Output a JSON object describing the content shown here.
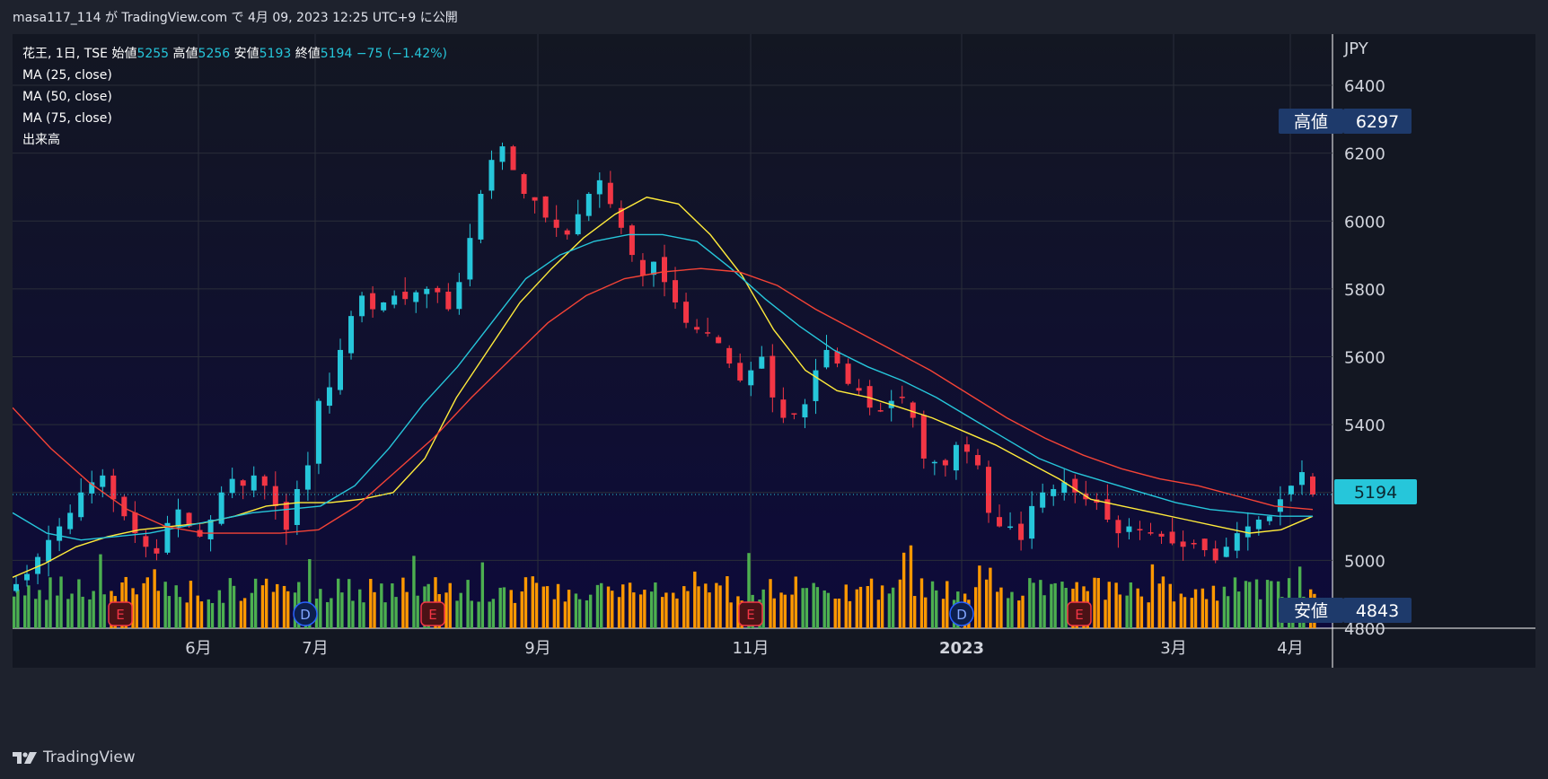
{
  "header": {
    "publish_line": "masa117_114 が TradingView.com で 4月 09, 2023 12:25 UTC+9 に公開"
  },
  "legend": {
    "symbol": "花王, 1日, TSE",
    "open_label": "始値",
    "open": "5255",
    "high_label": "高値",
    "high": "5256",
    "low_label": "安値",
    "low": "5193",
    "close_label": "終値",
    "close": "5194",
    "change": "−75 (−1.42%)",
    "ma1": "MA (25, close)",
    "ma2": "MA (50, close)",
    "ma3": "MA (75, close)",
    "volume": "出来高"
  },
  "price_axis": {
    "currency": "JPY",
    "high_tag_label": "高値",
    "high_tag_value": "6297",
    "low_tag_label": "安値",
    "low_tag_value": "4843",
    "last_price": "5194"
  },
  "footer": {
    "brand": "TradingView"
  },
  "colors": {
    "up": "#26c6da",
    "down": "#f23645",
    "ma25": "#ffeb3b",
    "ma50": "#26c6da",
    "ma75": "#f44336",
    "vol_up": "#4caf50",
    "vol_down": "#ff9800",
    "bg_top": "#131722",
    "bg_bottom": "#0d0a3a"
  },
  "chart_data": {
    "type": "candlestick",
    "title": "花王, 1日, TSE",
    "ylabel": "JPY",
    "ylim": [
      4800,
      6500
    ],
    "y_ticks": [
      4800,
      5000,
      5200,
      5400,
      5600,
      5800,
      6000,
      6200,
      6400
    ],
    "x_tick_labels": [
      "6月",
      "7月",
      "9月",
      "11月",
      "2023",
      "3月",
      "4月"
    ],
    "date_range": [
      "2022-05",
      "2023-04-07"
    ],
    "events": [
      {
        "type": "E",
        "label": "E",
        "month": "2022-05"
      },
      {
        "type": "D",
        "label": "D",
        "month": "2022-06"
      },
      {
        "type": "E",
        "label": "E",
        "month": "2022-08"
      },
      {
        "type": "E",
        "label": "E",
        "month": "2022-10"
      },
      {
        "type": "D",
        "label": "D",
        "month": "2022-12"
      },
      {
        "type": "E",
        "label": "E",
        "month": "2023-02"
      }
    ],
    "series": [
      {
        "name": "花王",
        "style": "candles",
        "close_path": [
          4930,
          4960,
          5010,
          5060,
          5100,
          5140,
          5200,
          5230,
          5250,
          5180,
          5130,
          5080,
          5040,
          5020,
          5110,
          5150,
          5100,
          5070,
          5120,
          5200,
          5240,
          5220,
          5250,
          5220,
          5160,
          5090,
          5210,
          5280,
          5470,
          5510,
          5620,
          5720,
          5780,
          5740,
          5760,
          5780,
          5770,
          5790,
          5800,
          5790,
          5740,
          5820,
          5950,
          6080,
          6180,
          6220,
          6150,
          6080,
          6060,
          6010,
          5980,
          5960,
          6020,
          6080,
          6120,
          6050,
          5980,
          5900,
          5840,
          5880,
          5820,
          5760,
          5700,
          5680,
          5670,
          5640,
          5580,
          5530,
          5560,
          5600,
          5480,
          5420,
          5430,
          5460,
          5560,
          5620,
          5580,
          5520,
          5500,
          5450,
          5440,
          5470,
          5480,
          5420,
          5300,
          5290,
          5280,
          5340,
          5320,
          5280,
          5140,
          5100,
          5100,
          5060,
          5160,
          5200,
          5210,
          5230,
          5200,
          5180,
          5170,
          5120,
          5080,
          5100,
          5090,
          5080,
          5070,
          5050,
          5040,
          5050,
          5030,
          5000,
          5040,
          5080,
          5100,
          5120,
          5130,
          5180,
          5220,
          5260,
          5194
        ]
      },
      {
        "name": "MA (25, close)",
        "values": [
          4950,
          4990,
          5040,
          5070,
          5090,
          5100,
          5110,
          5130,
          5160,
          5170,
          5170,
          5180,
          5200,
          5300,
          5480,
          5620,
          5760,
          5860,
          5950,
          6020,
          6070,
          6050,
          5960,
          5840,
          5680,
          5560,
          5500,
          5480,
          5450,
          5420,
          5380,
          5340,
          5290,
          5240,
          5180,
          5160,
          5140,
          5120,
          5100,
          5080,
          5090,
          5130
        ]
      },
      {
        "name": "MA (50, close)",
        "values": [
          5140,
          5080,
          5060,
          5070,
          5080,
          5100,
          5120,
          5140,
          5150,
          5160,
          5220,
          5330,
          5460,
          5570,
          5700,
          5830,
          5900,
          5940,
          5960,
          5960,
          5940,
          5860,
          5770,
          5690,
          5620,
          5570,
          5530,
          5480,
          5420,
          5360,
          5300,
          5260,
          5230,
          5200,
          5170,
          5150,
          5140,
          5130,
          5130
        ]
      },
      {
        "name": "MA (75, close)",
        "values": [
          5450,
          5330,
          5230,
          5150,
          5100,
          5080,
          5080,
          5080,
          5090,
          5160,
          5260,
          5360,
          5480,
          5590,
          5700,
          5780,
          5830,
          5850,
          5860,
          5850,
          5810,
          5740,
          5680,
          5620,
          5560,
          5490,
          5420,
          5360,
          5310,
          5270,
          5240,
          5220,
          5190,
          5160,
          5150
        ]
      }
    ]
  }
}
